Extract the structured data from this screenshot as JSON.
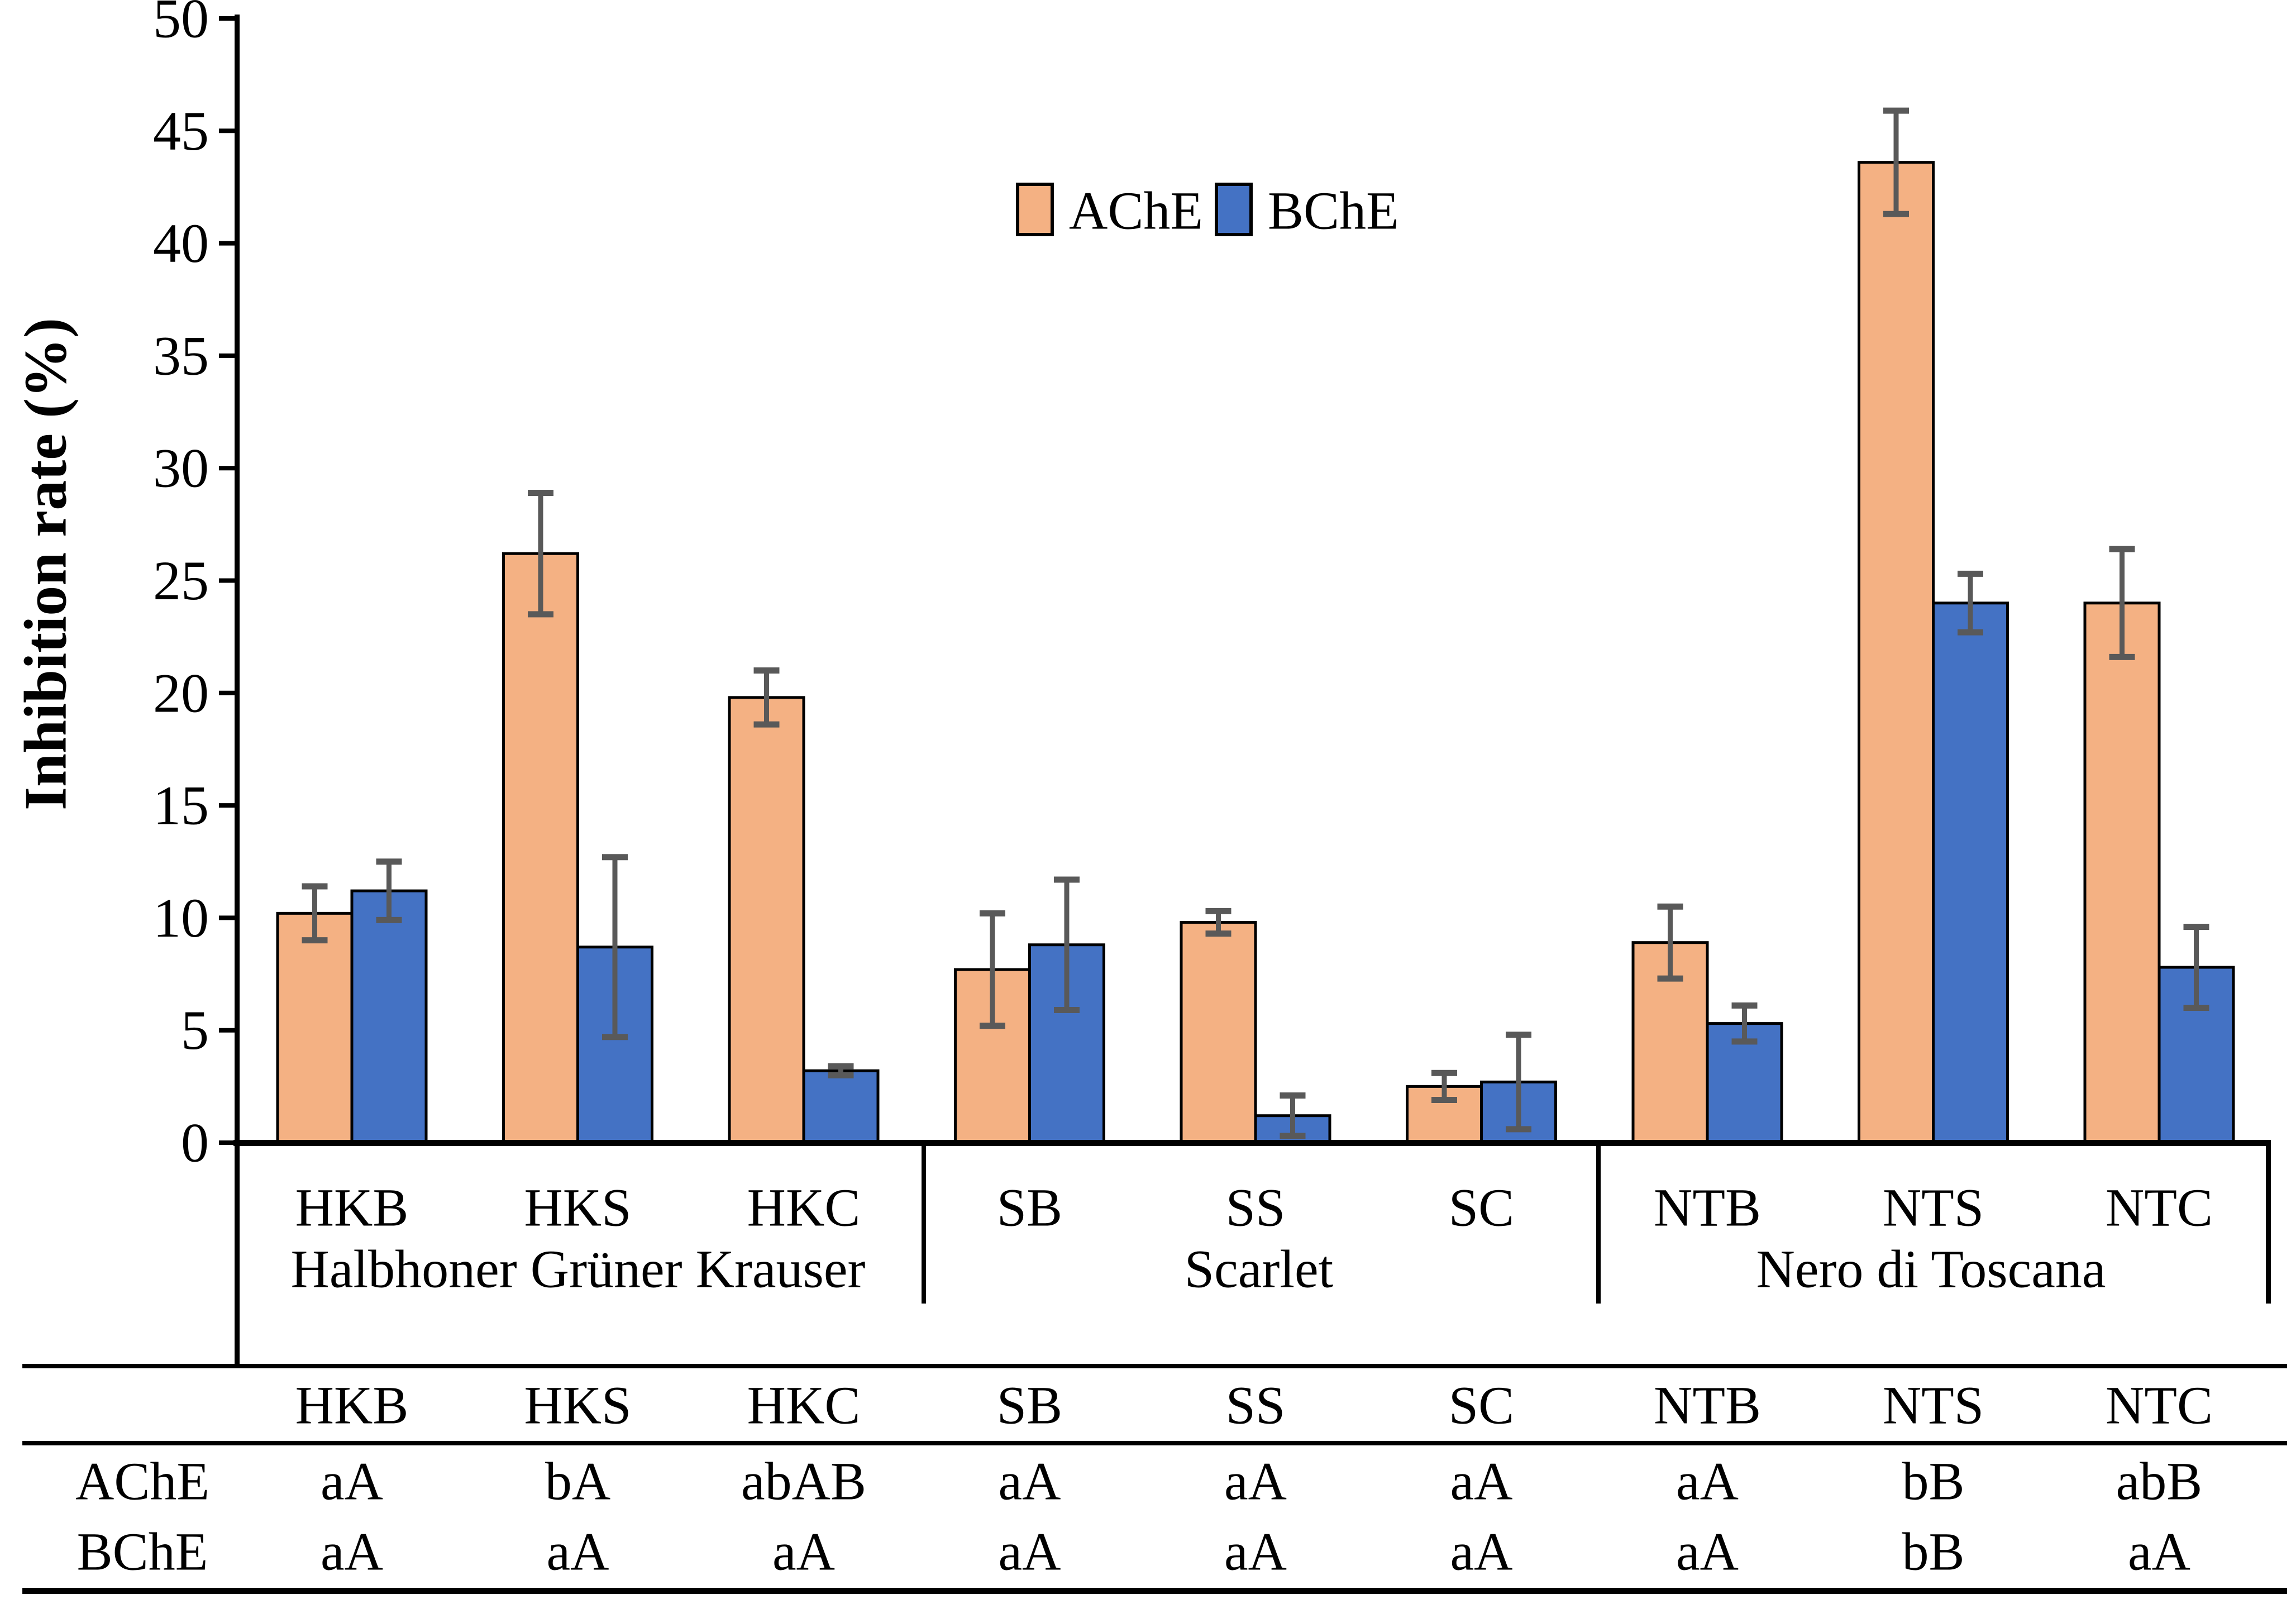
{
  "figure_background": "#FFFFFF",
  "chart_data": {
    "type": "bar",
    "title": "",
    "xlabel": "",
    "ylabel": "Inhibition rate (%)",
    "ylim": [
      0,
      50
    ],
    "ytick_step": 5,
    "yticks": [
      0,
      5,
      10,
      15,
      20,
      25,
      30,
      35,
      40,
      45,
      50
    ],
    "grid": false,
    "legend_position": "top-center",
    "categories": [
      "HKB",
      "HKS",
      "HKC",
      "SB",
      "SS",
      "SC",
      "NTB",
      "NTS",
      "NTC"
    ],
    "groups": [
      {
        "label": "Halbhoner Grüner Krauser",
        "categories": [
          "HKB",
          "HKS",
          "HKC"
        ]
      },
      {
        "label": "Scarlet",
        "categories": [
          "SB",
          "SS",
          "SC"
        ]
      },
      {
        "label": "Nero di Toscana",
        "categories": [
          "NTB",
          "NTS",
          "NTC"
        ]
      }
    ],
    "series": [
      {
        "name": "AChE",
        "color": "#F4B183",
        "values": [
          10.2,
          26.2,
          19.8,
          7.7,
          9.8,
          2.5,
          8.9,
          43.6,
          24.0
        ],
        "errors": [
          1.2,
          2.7,
          1.2,
          2.5,
          0.5,
          0.6,
          1.6,
          2.3,
          2.4
        ]
      },
      {
        "name": "BChE",
        "color": "#4472C4",
        "values": [
          11.2,
          8.7,
          3.2,
          8.8,
          1.2,
          2.7,
          5.3,
          24.0,
          7.8
        ],
        "errors": [
          1.3,
          4.0,
          0.2,
          2.9,
          0.9,
          2.1,
          0.8,
          1.3,
          1.8
        ]
      }
    ],
    "bar_border_color": "#000000",
    "error_bar_color": "#595959",
    "axis_color": "#000000"
  },
  "table": {
    "columns": [
      "HKB",
      "HKS",
      "HKC",
      "SB",
      "SS",
      "SC",
      "NTB",
      "NTS",
      "NTC"
    ],
    "rows": [
      {
        "label": "AChE",
        "color": "#F2B08C",
        "cells": [
          "aA",
          "bA",
          "abAB",
          "aA",
          "aA",
          "aA",
          "aA",
          "bB",
          "abB"
        ]
      },
      {
        "label": "BChE",
        "color": "#4E7CC9",
        "cells": [
          "aA",
          "aA",
          "aA",
          "aA",
          "aA",
          "aA",
          "aA",
          "bB",
          "aA"
        ]
      }
    ]
  }
}
